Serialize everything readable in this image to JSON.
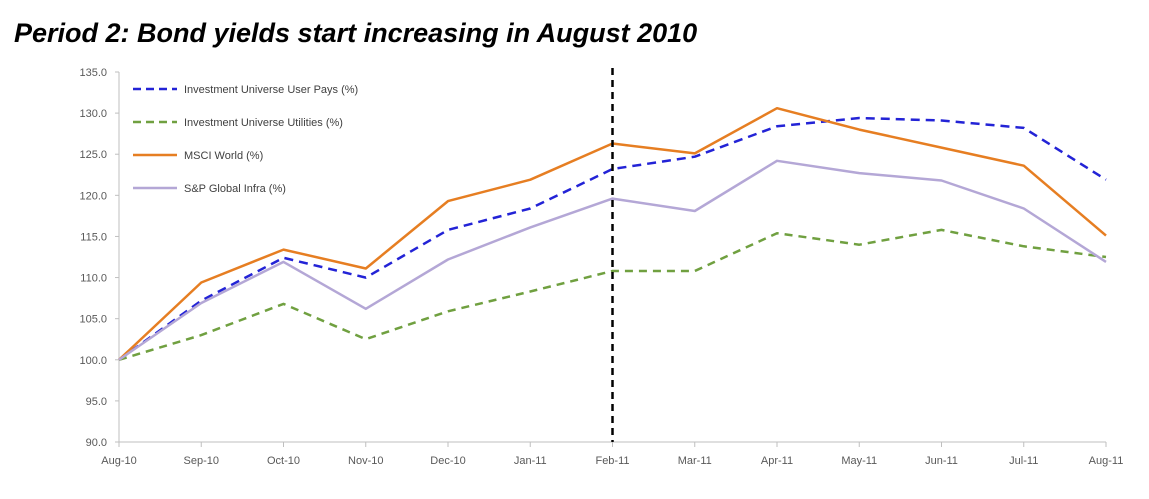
{
  "chart_data": {
    "type": "line",
    "title": "Period 2: Bond yields start increasing in August 2010",
    "xlabel": "",
    "ylabel": "",
    "categories": [
      "Aug-10",
      "Sep-10",
      "Oct-10",
      "Nov-10",
      "Dec-10",
      "Jan-11",
      "Feb-11",
      "Mar-11",
      "Apr-11",
      "May-11",
      "Jun-11",
      "Jul-11",
      "Aug-11"
    ],
    "ylim": [
      90,
      135
    ],
    "yticks": [
      90,
      95,
      100,
      105,
      110,
      115,
      120,
      125,
      130,
      135
    ],
    "ytick_labels": [
      "90.0",
      "95.0",
      "100.0",
      "105.0",
      "110.0",
      "115.0",
      "120.0",
      "125.0",
      "130.0",
      "135.0"
    ],
    "grid": false,
    "legend_position": "top-left",
    "annotations": [
      {
        "type": "vertical-dashed-line",
        "x": "Feb-11",
        "color": "#000000"
      }
    ],
    "series": [
      {
        "name": "Investment Universe User Pays (%)",
        "color": "#2323d6",
        "style": "dashed",
        "values": [
          100.0,
          107.2,
          112.4,
          110.0,
          115.8,
          118.4,
          123.2,
          124.7,
          128.4,
          129.4,
          129.1,
          128.2,
          121.9
        ]
      },
      {
        "name": "Investment Universe Utilities (%)",
        "color": "#70a040",
        "style": "dashed",
        "values": [
          100.0,
          103.0,
          106.8,
          102.5,
          105.9,
          108.3,
          110.8,
          110.8,
          115.4,
          114.0,
          115.8,
          113.8,
          112.5
        ]
      },
      {
        "name": "MSCI World  (%)",
        "color": "#e67e22",
        "style": "solid",
        "values": [
          100.0,
          109.4,
          113.4,
          111.1,
          119.3,
          121.9,
          126.3,
          125.1,
          130.6,
          128.0,
          125.8,
          123.6,
          115.1
        ]
      },
      {
        "name": "S&P Global Infra  (%)",
        "color": "#b4a7d6",
        "style": "solid",
        "values": [
          100.0,
          106.9,
          111.9,
          106.2,
          112.2,
          116.1,
          119.6,
          118.1,
          124.2,
          122.7,
          121.8,
          118.4,
          111.9
        ]
      }
    ]
  }
}
